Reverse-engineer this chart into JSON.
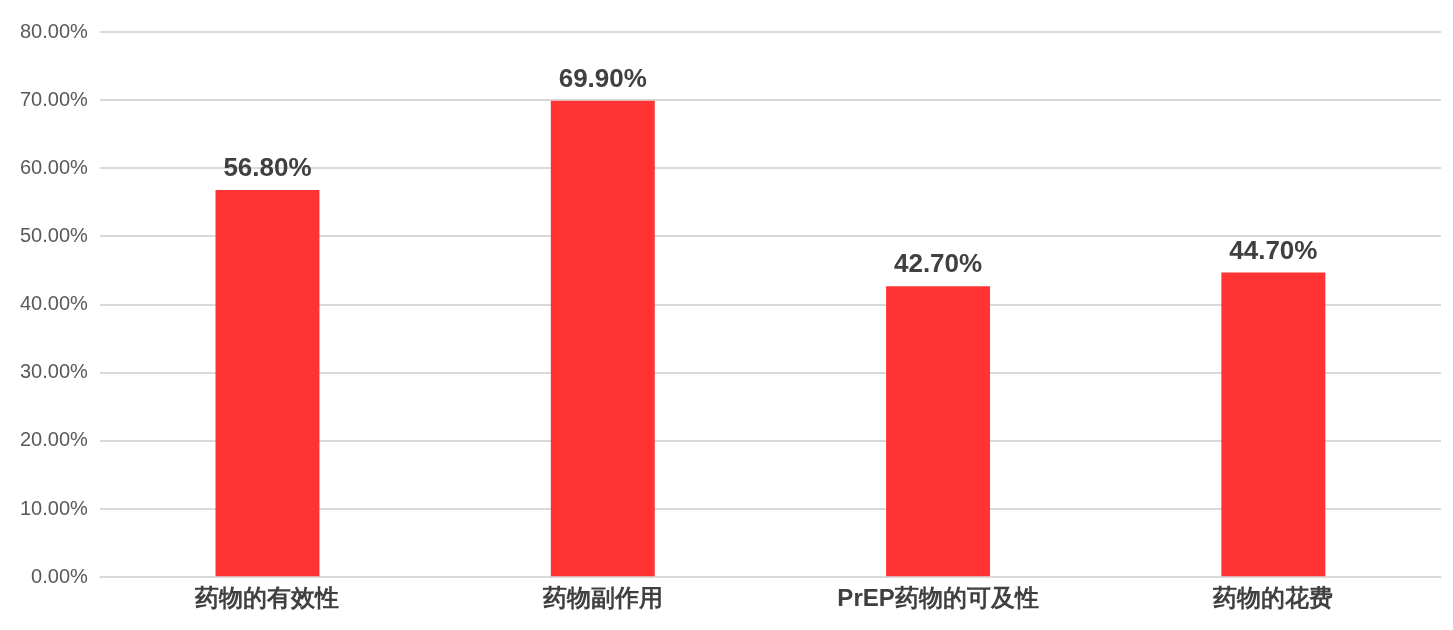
{
  "chart_data": {
    "type": "bar",
    "categories": [
      "药物的有效性",
      "药物副作用",
      "PrEP药物的可及性",
      "药物的花费"
    ],
    "values": [
      56.8,
      69.9,
      42.7,
      44.7
    ],
    "color": "#ff3333",
    "value_labels": [
      "56.80%",
      "69.90%",
      "42.70%",
      "44.70%"
    ],
    "ylim": [
      0,
      80
    ],
    "yticks": [
      {
        "value": 0,
        "label": "0.00%"
      },
      {
        "value": 10,
        "label": "10.00%"
      },
      {
        "value": 20,
        "label": "20.00%"
      },
      {
        "value": 30,
        "label": "30.00%"
      },
      {
        "value": 40,
        "label": "40.00%"
      },
      {
        "value": 50,
        "label": "50.00%"
      },
      {
        "value": 60,
        "label": "60.00%"
      },
      {
        "value": 70,
        "label": "70.00%"
      },
      {
        "value": 80,
        "label": "80.00%"
      }
    ],
    "grid": "y",
    "legend": false
  }
}
